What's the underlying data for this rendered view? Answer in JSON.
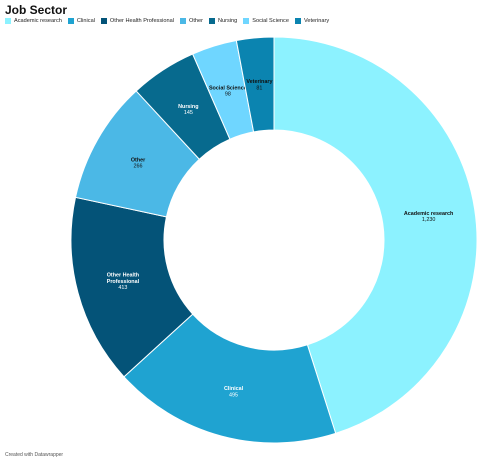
{
  "chart_data": {
    "type": "pie",
    "donut": true,
    "title": "Job Sector",
    "categories": [
      "Academic research",
      "Clinical",
      "Other Health Professional",
      "Other",
      "Nursing",
      "Social Science",
      "Veterinary"
    ],
    "values": [
      1230,
      495,
      413,
      266,
      145,
      98,
      81
    ],
    "colors": [
      "#8cf2ff",
      "#1fa3d1",
      "#045378",
      "#4bb8e6",
      "#076a8e",
      "#6fd6ff",
      "#0b84b0"
    ],
    "label_colors": [
      "#111111",
      "#ffffff",
      "#ffffff",
      "#111111",
      "#ffffff",
      "#111111",
      "#111111"
    ],
    "legend_placement": "top-left"
  },
  "footer": "Created with Datawrapper"
}
